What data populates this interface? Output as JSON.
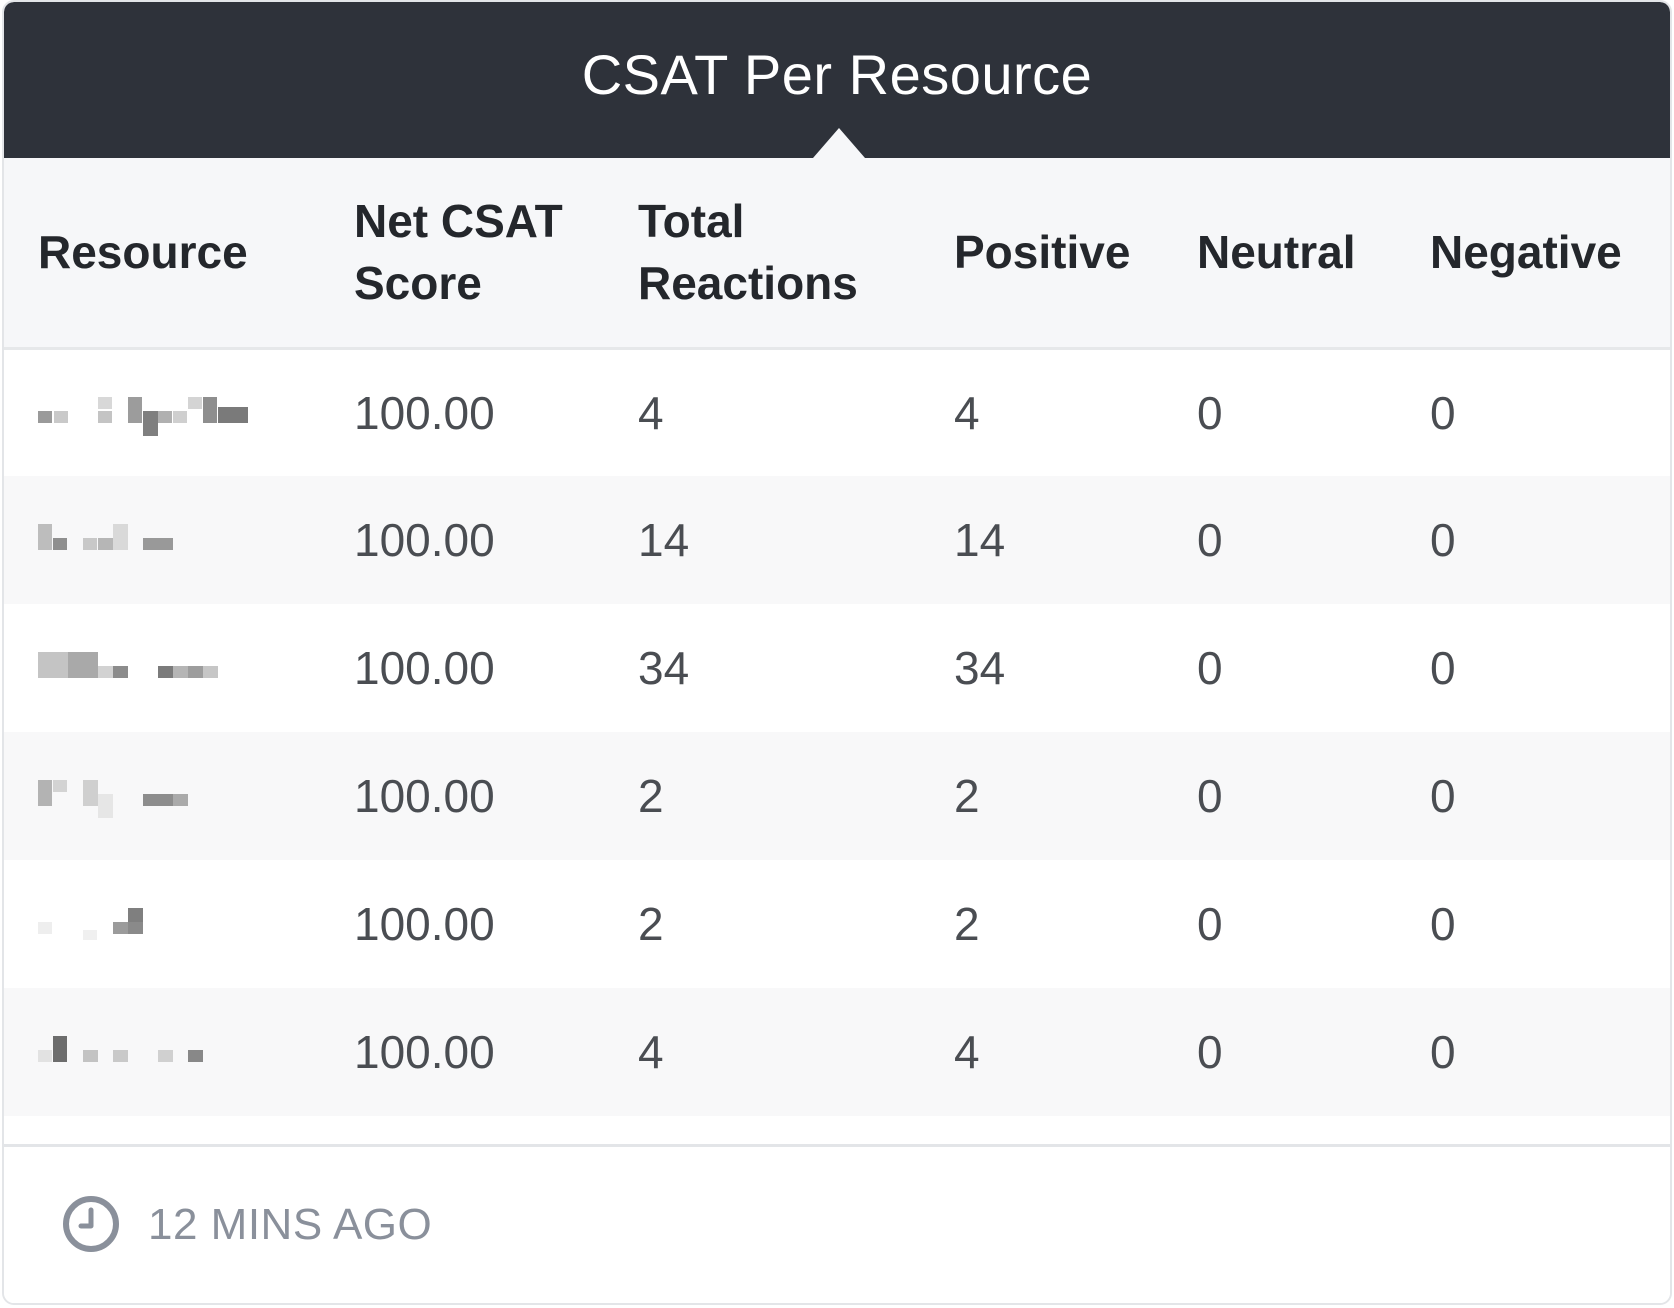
{
  "widget": {
    "title": "CSAT Per Resource"
  },
  "table": {
    "columns": [
      "Resource",
      "Net CSAT Score",
      "Total Reactions",
      "Positive",
      "Neutral",
      "Negative"
    ],
    "header_lines": {
      "resource": "Resource",
      "net_line1": "Net CSAT",
      "net_line2": "Score",
      "total_line1": "Total",
      "total_line2": "Reactions",
      "positive": "Positive",
      "neutral": "Neutral",
      "negative": "Negative"
    },
    "rows": [
      {
        "resource": "",
        "net_csat_score": "100.00",
        "total_reactions": "4",
        "positive": "4",
        "neutral": "0",
        "negative": "0"
      },
      {
        "resource": "",
        "net_csat_score": "100.00",
        "total_reactions": "14",
        "positive": "14",
        "neutral": "0",
        "negative": "0"
      },
      {
        "resource": "",
        "net_csat_score": "100.00",
        "total_reactions": "34",
        "positive": "34",
        "neutral": "0",
        "negative": "0"
      },
      {
        "resource": "",
        "net_csat_score": "100.00",
        "total_reactions": "2",
        "positive": "2",
        "neutral": "0",
        "negative": "0"
      },
      {
        "resource": "",
        "net_csat_score": "100.00",
        "total_reactions": "2",
        "positive": "2",
        "neutral": "0",
        "negative": "0"
      },
      {
        "resource": "",
        "net_csat_score": "100.00",
        "total_reactions": "4",
        "positive": "4",
        "neutral": "0",
        "negative": "0"
      }
    ]
  },
  "footer": {
    "last_updated": "12 MINS AGO",
    "icon": "clock-icon"
  },
  "colors": {
    "header_bg": "#2e323a",
    "table_header_bg": "#f6f7f9",
    "footer_text": "#8a909b"
  }
}
